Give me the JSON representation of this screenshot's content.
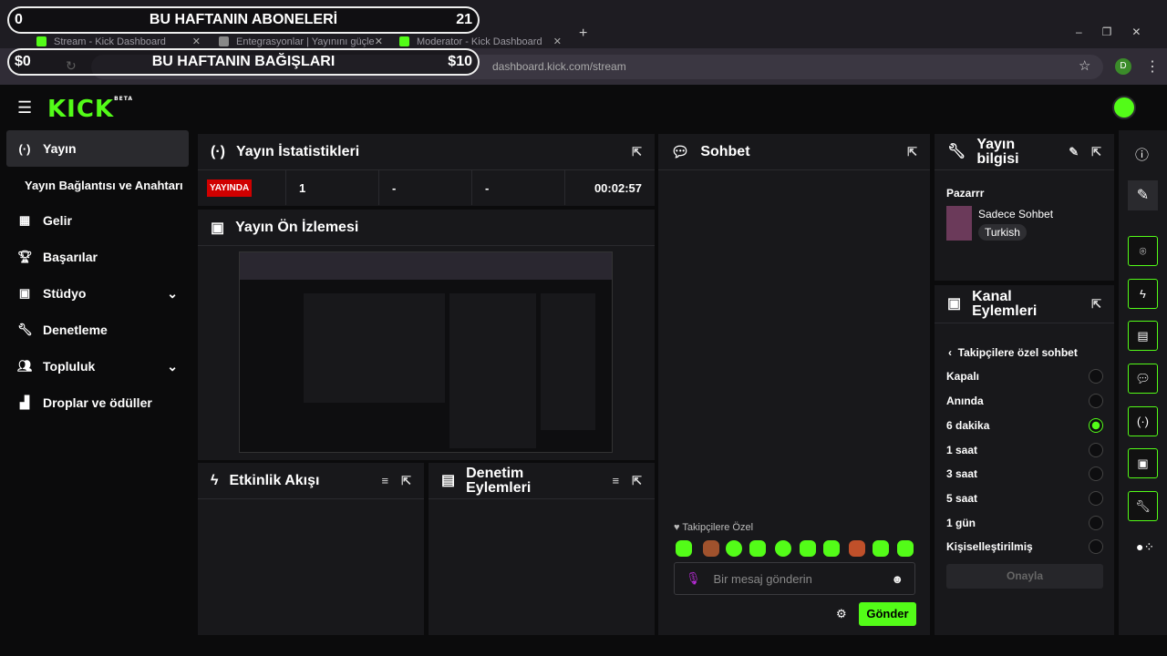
{
  "browser": {
    "tabs": [
      {
        "label": "Stream - Kick Dashboard"
      },
      {
        "label": "Entegrasyonlar | Yayınını güçle"
      },
      {
        "label": "Moderator - Kick Dashboard"
      }
    ],
    "url": "dashboard.kick.com/stream",
    "profile": "D"
  },
  "overlay": {
    "subs": {
      "title": "BU HAFTANIN ABONELERİ",
      "min": "0",
      "max": "21"
    },
    "donations": {
      "title": "BU HAFTANIN BAĞIŞLARI",
      "min": "$0",
      "max": "$10"
    }
  },
  "logo": {
    "text": "KICK",
    "badge": "BETA"
  },
  "sidebar": {
    "items": [
      {
        "label": "Yayın",
        "active": true
      },
      {
        "label": "Yayın Bağlantısı ve Anahtarı"
      },
      {
        "label": "Gelir"
      },
      {
        "label": "Başarılar"
      },
      {
        "label": "Stüdyo"
      },
      {
        "label": "Denetleme"
      },
      {
        "label": "Topluluk"
      },
      {
        "label": "Droplar ve ödüller"
      }
    ]
  },
  "stats": {
    "title": "Yayın İstatistikleri",
    "status": "YAYINDA",
    "values": [
      "1",
      "-",
      "-"
    ],
    "time": "00:02:57"
  },
  "preview": {
    "title": "Yayın Ön İzlemesi"
  },
  "events": {
    "title": "Etkinlik Akışı"
  },
  "modactions": {
    "title": "Denetim Eylemleri"
  },
  "chat": {
    "title": "Sohbet",
    "mode": "Takipçilere Özel",
    "placeholder": "Bir mesaj gönderin",
    "send": "Gönder"
  },
  "info": {
    "title": "Yayın bilgisi",
    "stream_title": "Pazarrr",
    "category": "Sadece Sohbet",
    "language": "Turkish"
  },
  "channel": {
    "title": "Kanal Eylemleri",
    "back_label": "Takipçilere özel sohbet",
    "options": [
      "Kapalı",
      "Anında",
      "6 dakika",
      "1 saat",
      "3 saat",
      "5 saat",
      "1 gün",
      "Kişiselleştirilmiş"
    ],
    "selected": "6 dakika",
    "confirm": "Onayla"
  },
  "colors": {
    "accent": "#53fc18",
    "live": "#d00000"
  }
}
